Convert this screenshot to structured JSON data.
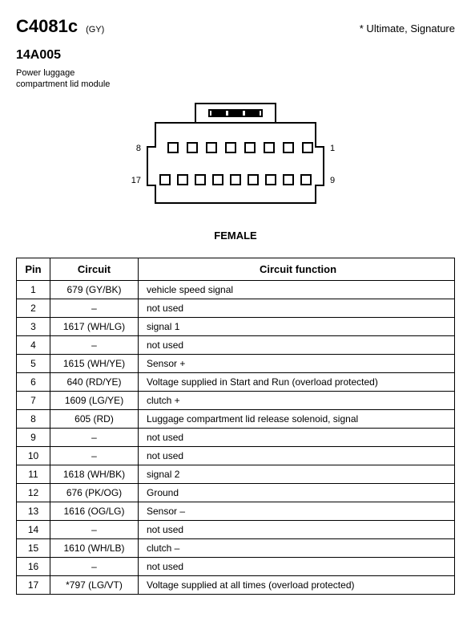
{
  "header": {
    "connector_id": "C4081c",
    "color_code": "(GY)",
    "variants": "* Ultimate, Signature",
    "part_number": "14A005",
    "description": "Power luggage compartment lid module"
  },
  "connector": {
    "gender_label": "FEMALE",
    "pin_labels": {
      "top_left": "8",
      "top_right": "1",
      "bottom_left": "17",
      "bottom_right": "9"
    },
    "body_fill": "#ffffff",
    "body_stroke": "#000000",
    "stroke_width": 2,
    "cavity_fill": "#ffffff"
  },
  "table": {
    "headers": {
      "pin": "Pin",
      "circuit": "Circuit",
      "function": "Circuit function"
    },
    "rows": [
      {
        "pin": "1",
        "circuit": "679 (GY/BK)",
        "function": "vehicle speed signal"
      },
      {
        "pin": "2",
        "circuit": "–",
        "function": "not used"
      },
      {
        "pin": "3",
        "circuit": "1617 (WH/LG)",
        "function": "signal 1"
      },
      {
        "pin": "4",
        "circuit": "–",
        "function": "not used"
      },
      {
        "pin": "5",
        "circuit": "1615 (WH/YE)",
        "function": "Sensor +"
      },
      {
        "pin": "6",
        "circuit": "640 (RD/YE)",
        "function": "Voltage supplied in Start and Run (overload protected)"
      },
      {
        "pin": "7",
        "circuit": "1609 (LG/YE)",
        "function": "clutch +"
      },
      {
        "pin": "8",
        "circuit": "605 (RD)",
        "function": "Luggage compartment lid release solenoid, signal"
      },
      {
        "pin": "9",
        "circuit": "–",
        "function": "not used"
      },
      {
        "pin": "10",
        "circuit": "–",
        "function": "not used"
      },
      {
        "pin": "11",
        "circuit": "1618 (WH/BK)",
        "function": "signal 2"
      },
      {
        "pin": "12",
        "circuit": "676 (PK/OG)",
        "function": "Ground"
      },
      {
        "pin": "13",
        "circuit": "1616 (OG/LG)",
        "function": "Sensor –"
      },
      {
        "pin": "14",
        "circuit": "–",
        "function": "not used"
      },
      {
        "pin": "15",
        "circuit": "1610 (WH/LB)",
        "function": "clutch –"
      },
      {
        "pin": "16",
        "circuit": "–",
        "function": "not used"
      },
      {
        "pin": "17",
        "circuit": "*797 (LG/VT)",
        "function": "Voltage supplied at all times (overload protected)"
      }
    ]
  }
}
